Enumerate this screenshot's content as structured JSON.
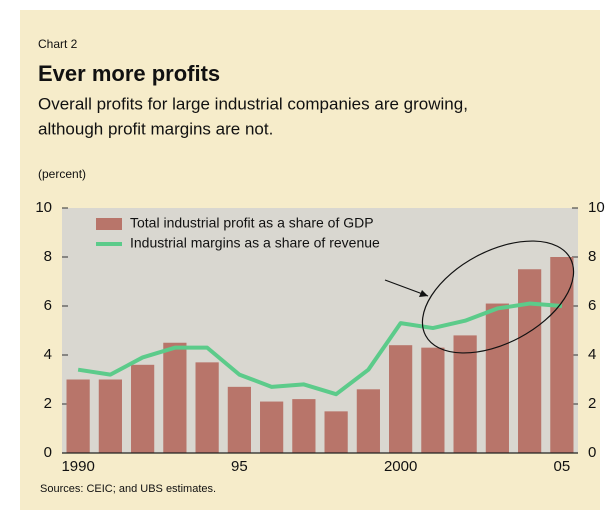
{
  "chart_data": {
    "type": "bar_line",
    "label": "Chart 2",
    "title": "Ever more profits",
    "subtitle": [
      "Overall profits for large industrial companies are growing,",
      "although profit margins are not."
    ],
    "y_label": "(percent)",
    "source": "Sources: CEIC; and UBS estimates.",
    "categories": [
      "1990",
      null,
      null,
      null,
      null,
      "95",
      null,
      null,
      null,
      null,
      "2000",
      null,
      null,
      null,
      null,
      "05"
    ],
    "series": [
      {
        "name": "Total industrial profit as a share of GDP",
        "type": "bar",
        "color": "#b8756a",
        "values": [
          3.0,
          3.0,
          3.6,
          4.5,
          3.7,
          2.7,
          2.1,
          2.2,
          1.7,
          2.6,
          4.4,
          4.3,
          4.8,
          6.1,
          7.5,
          8.0
        ]
      },
      {
        "name": "Industrial margins as a share of revenue",
        "type": "line",
        "color": "#5ccb8a",
        "values": [
          3.4,
          3.2,
          3.9,
          4.3,
          4.3,
          3.2,
          2.7,
          2.8,
          2.4,
          3.4,
          5.3,
          5.1,
          5.4,
          5.9,
          6.1,
          6.0
        ]
      }
    ],
    "ylim": [
      0,
      10
    ],
    "yticks": [
      0,
      2,
      4,
      6,
      8,
      10
    ],
    "y2lim": [
      0,
      10
    ],
    "y2ticks": [
      0,
      2,
      4,
      6,
      8,
      10
    ]
  }
}
